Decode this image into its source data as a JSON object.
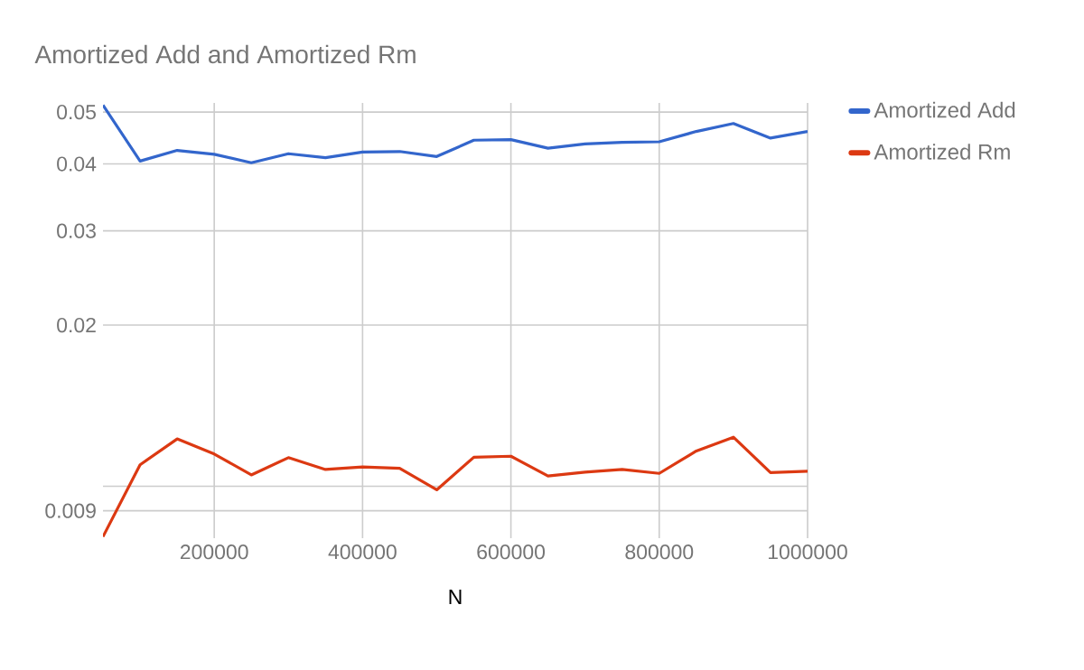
{
  "chart_data": {
    "type": "line",
    "title": "Amortized Add and Amortized Rm",
    "xlabel": "N",
    "x": [
      50000,
      100000,
      150000,
      200000,
      250000,
      300000,
      350000,
      400000,
      450000,
      500000,
      550000,
      600000,
      650000,
      700000,
      750000,
      800000,
      850000,
      900000,
      950000,
      1000000
    ],
    "series": [
      {
        "name": "Amortized Add",
        "color": "#3366cc",
        "values": [
          0.0515,
          0.0405,
          0.0424,
          0.0417,
          0.0402,
          0.0418,
          0.0411,
          0.0421,
          0.0422,
          0.0413,
          0.0443,
          0.0444,
          0.0428,
          0.0436,
          0.0439,
          0.044,
          0.046,
          0.0476,
          0.0447,
          0.046
        ]
      },
      {
        "name": "Amortized Rm",
        "color": "#dc3912",
        "values": [
          0.00805,
          0.01097,
          0.01226,
          0.01149,
          0.0105,
          0.01131,
          0.01075,
          0.01087,
          0.0108,
          0.00985,
          0.01133,
          0.01138,
          0.01045,
          0.01063,
          0.01075,
          0.01057,
          0.01164,
          0.01235,
          0.01061,
          0.01067
        ]
      }
    ],
    "xlim": [
      50000,
      1000000
    ],
    "xticks": [
      200000,
      400000,
      600000,
      800000,
      1000000
    ],
    "ylim": [
      0.008,
      0.052
    ],
    "yticks": [
      0.009,
      {
        "value": 0.01,
        "label": null
      },
      0.02,
      0.03,
      0.04,
      0.05
    ],
    "log": "y",
    "grid": true,
    "legend": "top right",
    "marker": "none",
    "line_style": "solid"
  }
}
